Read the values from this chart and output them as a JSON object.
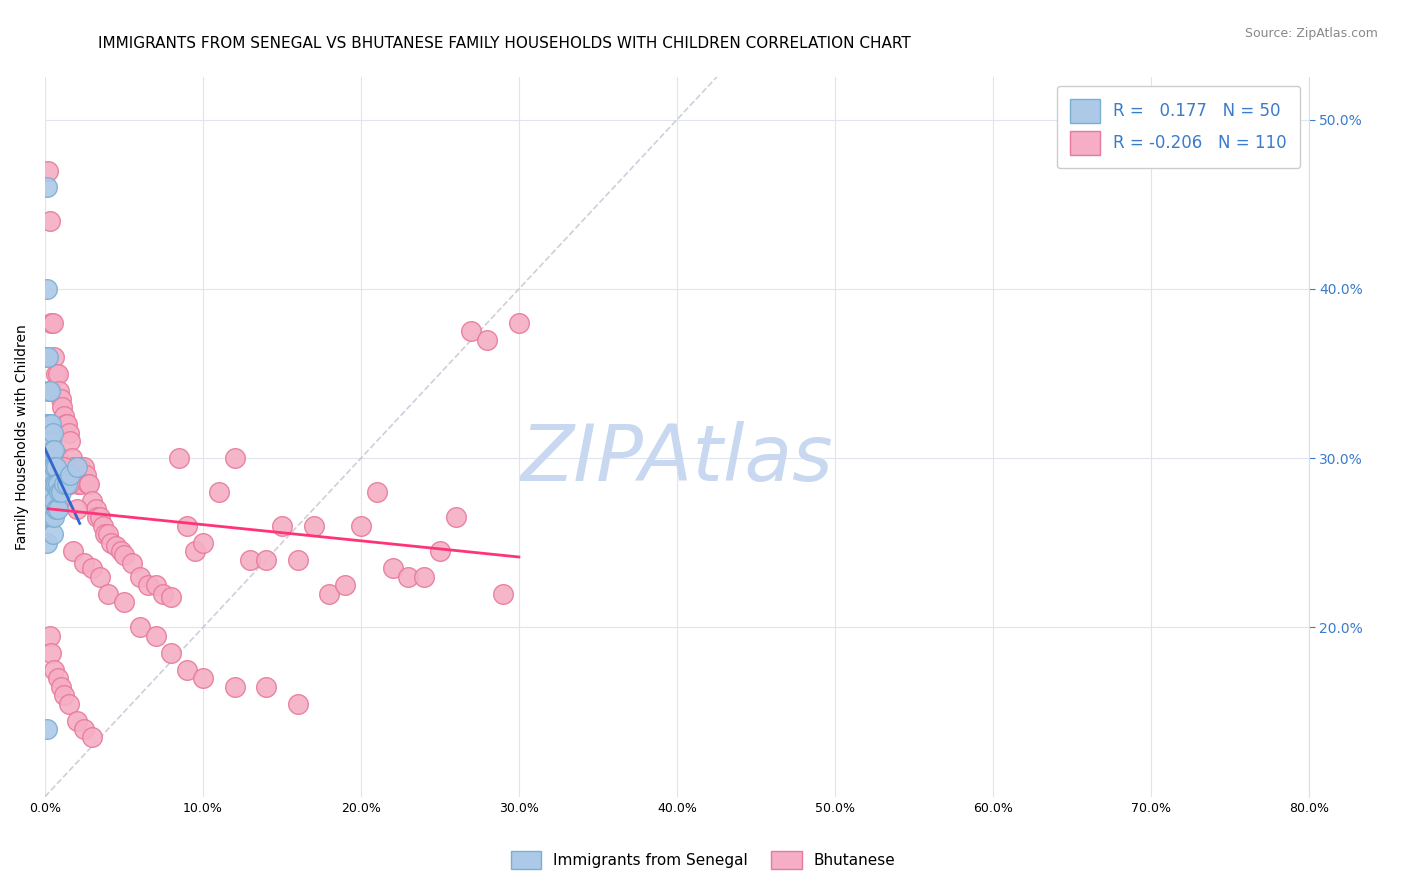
{
  "title": "IMMIGRANTS FROM SENEGAL VS BHUTANESE FAMILY HOUSEHOLDS WITH CHILDREN CORRELATION CHART",
  "source": "Source: ZipAtlas.com",
  "ylabel": "Family Households with Children",
  "xlim": [
    0.0,
    0.8
  ],
  "ylim": [
    0.1,
    0.525
  ],
  "xticks": [
    0.0,
    0.1,
    0.2,
    0.3,
    0.4,
    0.5,
    0.6,
    0.7,
    0.8
  ],
  "yticks": [
    0.2,
    0.3,
    0.4,
    0.5
  ],
  "ytick_labels": [
    "20.0%",
    "30.0%",
    "40.0%",
    "50.0%"
  ],
  "xtick_labels": [
    "0.0%",
    "10.0%",
    "20.0%",
    "30.0%",
    "40.0%",
    "50.0%",
    "60.0%",
    "70.0%",
    "80.0%"
  ],
  "senegal_color": "#adc9e8",
  "bhutanese_color": "#f5aec5",
  "senegal_edge": "#7aafd4",
  "bhutanese_edge": "#e87a9a",
  "senegal_trend_color": "#3366cc",
  "bhutanese_trend_color": "#ff3377",
  "legend_R1": "0.177",
  "legend_N1": "50",
  "legend_R2": "-0.206",
  "legend_N2": "110",
  "watermark": "ZIPAtlas",
  "watermark_color": "#c8d8f0",
  "ref_line_color": "#bbbbcc",
  "background_color": "#ffffff",
  "grid_color": "#e0e4ee",
  "title_fontsize": 11,
  "axis_label_fontsize": 10,
  "tick_fontsize": 9,
  "senegal_x": [
    0.001,
    0.001,
    0.001,
    0.001,
    0.001,
    0.002,
    0.002,
    0.002,
    0.002,
    0.002,
    0.002,
    0.002,
    0.003,
    0.003,
    0.003,
    0.003,
    0.003,
    0.003,
    0.003,
    0.003,
    0.004,
    0.004,
    0.004,
    0.004,
    0.004,
    0.004,
    0.005,
    0.005,
    0.005,
    0.005,
    0.005,
    0.005,
    0.005,
    0.006,
    0.006,
    0.006,
    0.006,
    0.006,
    0.007,
    0.007,
    0.007,
    0.008,
    0.008,
    0.009,
    0.01,
    0.012,
    0.014,
    0.016,
    0.02,
    0.001
  ],
  "senegal_y": [
    0.46,
    0.4,
    0.36,
    0.32,
    0.25,
    0.36,
    0.34,
    0.32,
    0.3,
    0.295,
    0.28,
    0.265,
    0.34,
    0.32,
    0.3,
    0.295,
    0.29,
    0.28,
    0.27,
    0.265,
    0.32,
    0.31,
    0.3,
    0.295,
    0.28,
    0.265,
    0.315,
    0.305,
    0.295,
    0.29,
    0.28,
    0.27,
    0.255,
    0.305,
    0.295,
    0.285,
    0.275,
    0.265,
    0.295,
    0.285,
    0.27,
    0.285,
    0.27,
    0.28,
    0.28,
    0.285,
    0.285,
    0.29,
    0.295,
    0.14
  ],
  "bhutanese_x": [
    0.002,
    0.003,
    0.004,
    0.004,
    0.005,
    0.005,
    0.006,
    0.006,
    0.007,
    0.007,
    0.008,
    0.008,
    0.009,
    0.009,
    0.01,
    0.01,
    0.011,
    0.011,
    0.012,
    0.013,
    0.013,
    0.014,
    0.014,
    0.015,
    0.015,
    0.016,
    0.017,
    0.018,
    0.019,
    0.02,
    0.021,
    0.022,
    0.023,
    0.025,
    0.026,
    0.027,
    0.028,
    0.03,
    0.032,
    0.033,
    0.035,
    0.037,
    0.038,
    0.04,
    0.042,
    0.045,
    0.048,
    0.05,
    0.055,
    0.06,
    0.065,
    0.07,
    0.075,
    0.08,
    0.085,
    0.09,
    0.095,
    0.1,
    0.11,
    0.12,
    0.13,
    0.14,
    0.15,
    0.16,
    0.17,
    0.18,
    0.19,
    0.2,
    0.21,
    0.22,
    0.23,
    0.24,
    0.25,
    0.26,
    0.27,
    0.28,
    0.29,
    0.3,
    0.005,
    0.006,
    0.007,
    0.008,
    0.01,
    0.012,
    0.015,
    0.018,
    0.02,
    0.025,
    0.03,
    0.035,
    0.04,
    0.05,
    0.06,
    0.07,
    0.08,
    0.09,
    0.1,
    0.12,
    0.14,
    0.16,
    0.003,
    0.004,
    0.006,
    0.008,
    0.01,
    0.012,
    0.015,
    0.02,
    0.025,
    0.03
  ],
  "bhutanese_y": [
    0.47,
    0.44,
    0.38,
    0.34,
    0.38,
    0.3,
    0.36,
    0.3,
    0.35,
    0.29,
    0.35,
    0.3,
    0.34,
    0.29,
    0.335,
    0.295,
    0.33,
    0.285,
    0.325,
    0.32,
    0.285,
    0.32,
    0.285,
    0.315,
    0.285,
    0.31,
    0.3,
    0.295,
    0.29,
    0.295,
    0.285,
    0.295,
    0.285,
    0.295,
    0.29,
    0.285,
    0.285,
    0.275,
    0.27,
    0.265,
    0.265,
    0.26,
    0.255,
    0.255,
    0.25,
    0.248,
    0.245,
    0.243,
    0.238,
    0.23,
    0.225,
    0.225,
    0.22,
    0.218,
    0.3,
    0.26,
    0.245,
    0.25,
    0.28,
    0.3,
    0.24,
    0.24,
    0.26,
    0.24,
    0.26,
    0.22,
    0.225,
    0.26,
    0.28,
    0.235,
    0.23,
    0.23,
    0.245,
    0.265,
    0.375,
    0.37,
    0.22,
    0.38,
    0.295,
    0.285,
    0.28,
    0.275,
    0.285,
    0.295,
    0.285,
    0.245,
    0.27,
    0.238,
    0.235,
    0.23,
    0.22,
    0.215,
    0.2,
    0.195,
    0.185,
    0.175,
    0.17,
    0.165,
    0.165,
    0.155,
    0.195,
    0.185,
    0.175,
    0.17,
    0.165,
    0.16,
    0.155,
    0.145,
    0.14,
    0.135
  ]
}
